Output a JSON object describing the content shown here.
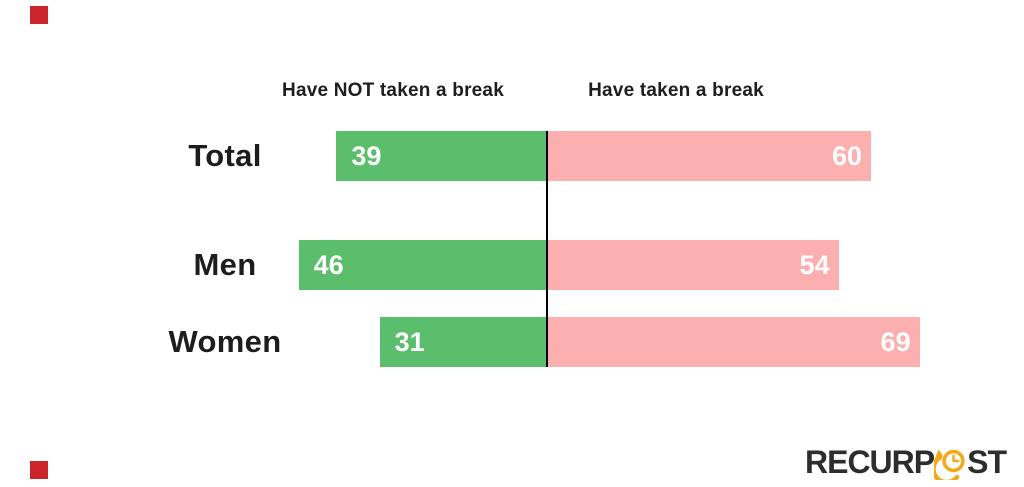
{
  "chart_data": {
    "type": "bar",
    "orientation": "horizontal-diverging",
    "categories": [
      "Total",
      "Men",
      "Women"
    ],
    "series": [
      {
        "name": "Have NOT taken a break",
        "side": "left",
        "color": "#5abe6c",
        "values": [
          39,
          46,
          31
        ]
      },
      {
        "name": "Have taken a break",
        "side": "right",
        "color": "#fbafaf",
        "values": [
          60,
          54,
          69
        ]
      },
      {
        "note": "values are percentages shown as data labels inside bars"
      }
    ],
    "title": "",
    "xlabel": "",
    "ylabel": "",
    "axes_shown": false,
    "grid": false,
    "legend_position": "top-as-column-headers",
    "value_label_color": "#ffffff",
    "category_label_color": "#1d1d1d",
    "header_label_color": "#1e1e1e",
    "divider_color": "#000000"
  },
  "branding": {
    "logo_text_left": "RECURP",
    "logo_text_right": "ST",
    "logo_icon": "clock-history-icon",
    "logo_color": "#2d2d2d",
    "accent_yellow": "#f2a91c"
  },
  "decorations": {
    "corner_marker_color": "#c9252b"
  }
}
